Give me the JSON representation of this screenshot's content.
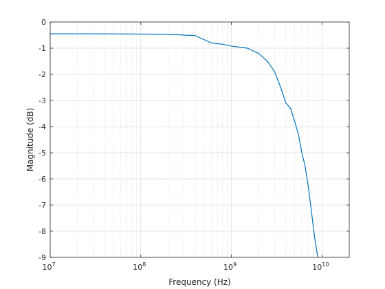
{
  "chart_data": {
    "type": "line",
    "xlabel": "Frequency (Hz)",
    "ylabel": "Magnitude (dB)",
    "xscale": "log",
    "xlim": [
      10000000,
      20000000000
    ],
    "ylim": [
      -9,
      0
    ],
    "x_tick_labels": [
      {
        "base": "10",
        "exp": "7",
        "value": 10000000
      },
      {
        "base": "10",
        "exp": "8",
        "value": 100000000
      },
      {
        "base": "10",
        "exp": "9",
        "value": 1000000000
      },
      {
        "base": "10",
        "exp": "10",
        "value": 10000000000
      }
    ],
    "y_ticks": [
      0,
      -1,
      -2,
      -3,
      -4,
      -5,
      -6,
      -7,
      -8,
      -9
    ],
    "y_tick_labels": [
      "0",
      "-1",
      "-2",
      "-3",
      "-4",
      "-5",
      "-6",
      "-7",
      "-8",
      "-9"
    ],
    "grid": {
      "major": true,
      "minor_x": true
    },
    "series": [
      {
        "color": "#0072BD",
        "x": [
          10000000,
          30000000,
          100000000,
          200000000,
          300000000,
          400000000,
          600000000,
          800000000,
          1000000000,
          1500000000,
          2000000000,
          2500000000,
          3000000000,
          3500000000,
          4000000000,
          4500000000,
          5000000000,
          5500000000,
          6000000000,
          6500000000,
          7000000000,
          7500000000,
          8000000000,
          8500000000,
          9000000000
        ],
        "y": [
          -0.45,
          -0.45,
          -0.46,
          -0.47,
          -0.5,
          -0.52,
          -0.8,
          -0.85,
          -0.92,
          -1.0,
          -1.2,
          -1.5,
          -1.9,
          -2.5,
          -3.1,
          -3.3,
          -3.8,
          -4.3,
          -5.0,
          -5.5,
          -6.2,
          -7.0,
          -7.8,
          -8.5,
          -9.0
        ]
      }
    ]
  }
}
